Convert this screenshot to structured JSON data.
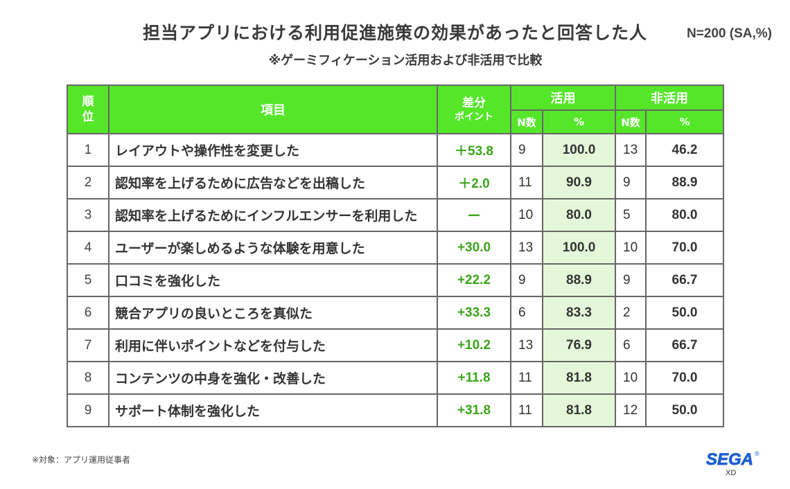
{
  "header": {
    "title": "担当アプリにおける利用促進施策の効果があったと回答した人",
    "n_label": "N=200 (SA,%)",
    "subtitle": "※ゲーミフィケーション活用および非活用で比較"
  },
  "table": {
    "col_rank": "順位",
    "col_item": "項目",
    "col_diff_line1": "差分",
    "col_diff_line2": "ポイント",
    "group_active": "活用",
    "group_inactive": "非活用",
    "sub_n": "N数",
    "sub_pct": "%"
  },
  "chart_data": {
    "type": "table",
    "columns": [
      "順位",
      "項目",
      "差分ポイント",
      "活用 N数",
      "活用 %",
      "非活用 N数",
      "非活用 %"
    ],
    "rows": [
      {
        "rank": "1",
        "item": "レイアウトや操作性を変更した",
        "diff": "＋53.8",
        "active_n": "9",
        "active_pct": "100.0",
        "inactive_n": "13",
        "inactive_pct": "46.2"
      },
      {
        "rank": "2",
        "item": "認知率を上げるために広告などを出稿した",
        "diff": "＋2.0",
        "active_n": "11",
        "active_pct": "90.9",
        "inactive_n": "9",
        "inactive_pct": "88.9"
      },
      {
        "rank": "3",
        "item": "認知率を上げるためにインフルエンサーを利用した",
        "diff": "ー",
        "active_n": "10",
        "active_pct": "80.0",
        "inactive_n": "5",
        "inactive_pct": "80.0"
      },
      {
        "rank": "4",
        "item": "ユーザーが楽しめるような体験を用意した",
        "diff": "+30.0",
        "active_n": "13",
        "active_pct": "100.0",
        "inactive_n": "10",
        "inactive_pct": "70.0"
      },
      {
        "rank": "5",
        "item": "口コミを強化した",
        "diff": "+22.2",
        "active_n": "9",
        "active_pct": "88.9",
        "inactive_n": "9",
        "inactive_pct": "66.7"
      },
      {
        "rank": "6",
        "item": "競合アプリの良いところを真似た",
        "diff": "+33.3",
        "active_n": "6",
        "active_pct": "83.3",
        "inactive_n": "2",
        "inactive_pct": "50.0"
      },
      {
        "rank": "7",
        "item": "利用に伴いポイントなどを付与した",
        "diff": "+10.2",
        "active_n": "13",
        "active_pct": "76.9",
        "inactive_n": "6",
        "inactive_pct": "66.7"
      },
      {
        "rank": "8",
        "item": "コンテンツの中身を強化・改善した",
        "diff": "+11.8",
        "active_n": "11",
        "active_pct": "81.8",
        "inactive_n": "10",
        "inactive_pct": "70.0"
      },
      {
        "rank": "9",
        "item": "サポート体制を強化した",
        "diff": "+31.8",
        "active_n": "11",
        "active_pct": "81.8",
        "inactive_n": "12",
        "inactive_pct": "50.0"
      }
    ]
  },
  "footer": {
    "note": "※対象：アプリ運用従事者",
    "logo_text": "SEGA",
    "logo_sub": "XD",
    "logo_mark": "®"
  },
  "colors": {
    "header_green": "#55e629",
    "diff_green": "#3aa61a",
    "active_pct_bg": "#e4f8d9",
    "logo_blue": "#1e5fd6"
  }
}
